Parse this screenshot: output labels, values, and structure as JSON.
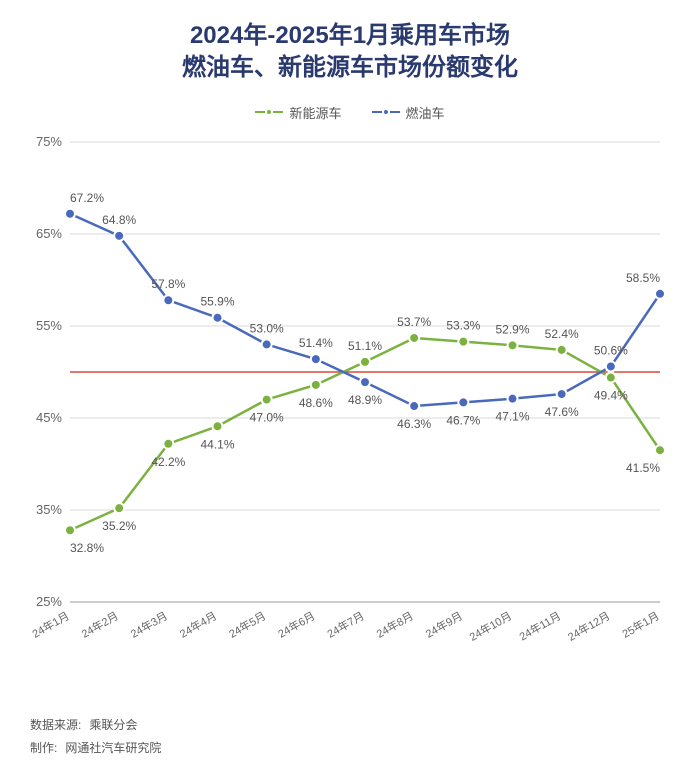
{
  "title_line1": "2024年-2025年1月乘用车市场",
  "title_line2": "燃油车、新能源车市场份额变化",
  "title_color": "#2a3a6e",
  "title_fontsize": 24,
  "legend": {
    "items": [
      {
        "label": "新能源车",
        "color": "#7bb23f"
      },
      {
        "label": "燃油车",
        "color": "#4a69bd"
      }
    ]
  },
  "chart": {
    "type": "line",
    "background_color": "#ffffff",
    "grid_color": "#d8d8d8",
    "axis_color": "#999999",
    "label_color": "#666666",
    "ylim": [
      25,
      75
    ],
    "ytick_step": 10,
    "ytick_labels": [
      "25%",
      "35%",
      "45%",
      "55%",
      "65%",
      "75%"
    ],
    "ref_line": {
      "value": 50,
      "color": "#d84a3a"
    },
    "categories": [
      "24年1月",
      "24年2月",
      "24年3月",
      "24年4月",
      "24年5月",
      "24年6月",
      "24年7月",
      "24年8月",
      "24年9月",
      "24年10月",
      "24年11月",
      "24年12月",
      "25年1月"
    ],
    "xtick_rotate": -30,
    "series": [
      {
        "name": "新能源车",
        "color": "#7bb23f",
        "values": [
          32.8,
          35.2,
          42.2,
          44.1,
          47.0,
          48.6,
          51.1,
          53.7,
          53.3,
          52.9,
          52.4,
          49.4,
          41.5
        ],
        "labels": [
          "32.8%",
          "35.2%",
          "42.2%",
          "44.1%",
          "47.0%",
          "48.6%",
          "51.1%",
          "53.7%",
          "53.3%",
          "52.9%",
          "52.4%",
          "49.4%",
          "41.5%"
        ],
        "label_pos": [
          "below",
          "below",
          "below",
          "below",
          "below",
          "below",
          "above",
          "above",
          "above",
          "above",
          "above",
          "below",
          "below"
        ]
      },
      {
        "name": "燃油车",
        "color": "#4a69bd",
        "values": [
          67.2,
          64.8,
          57.8,
          55.9,
          53.0,
          51.4,
          48.9,
          46.3,
          46.7,
          47.1,
          47.6,
          50.6,
          58.5
        ],
        "labels": [
          "67.2%",
          "64.8%",
          "57.8%",
          "55.9%",
          "53.0%",
          "51.4%",
          "48.9%",
          "46.3%",
          "46.7%",
          "47.1%",
          "47.6%",
          "50.6%",
          "58.5%"
        ],
        "label_pos": [
          "above",
          "above",
          "above",
          "above",
          "above",
          "above",
          "below",
          "below",
          "below",
          "below",
          "below",
          "above",
          "above"
        ]
      }
    ],
    "line_width": 2.5,
    "marker_radius": 5,
    "label_fontsize": 12,
    "axis_fontsize_y": 13,
    "axis_fontsize_x": 11
  },
  "footer": {
    "source_label": "数据来源:",
    "source_value": "乘联分会",
    "maker_label": "制作:",
    "maker_value": "网通社汽车研究院"
  }
}
